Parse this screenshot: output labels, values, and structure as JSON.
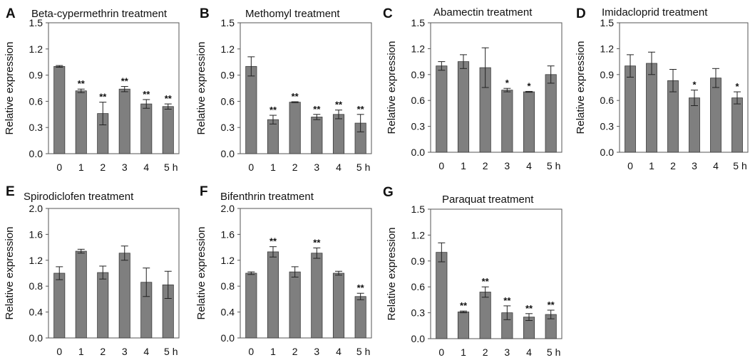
{
  "figure": {
    "x_unit_label": "h"
  },
  "chart_data": [
    {
      "panel": "A",
      "type": "bar",
      "title": "Beta-cypermethrin treatment",
      "xlabel": "",
      "ylabel": "Relative expression",
      "categories": [
        "0",
        "1",
        "2",
        "3",
        "4",
        "5"
      ],
      "values": [
        1.0,
        0.72,
        0.46,
        0.74,
        0.57,
        0.54
      ],
      "errors": [
        0.01,
        0.02,
        0.13,
        0.03,
        0.05,
        0.03
      ],
      "significance": [
        "",
        "**",
        "**",
        "**",
        "**",
        "**"
      ],
      "ylim": [
        0,
        1.5
      ],
      "yticks": [
        "0.0",
        "0.3",
        "0.6",
        "0.9",
        "1.2",
        "1.5"
      ]
    },
    {
      "panel": "B",
      "type": "bar",
      "title": "Methomyl treatment",
      "xlabel": "",
      "ylabel": "Relative expression",
      "categories": [
        "0",
        "1",
        "2",
        "3",
        "4",
        "5"
      ],
      "values": [
        1.0,
        0.39,
        0.59,
        0.42,
        0.45,
        0.35
      ],
      "errors": [
        0.11,
        0.05,
        0.005,
        0.03,
        0.05,
        0.1
      ],
      "significance": [
        "",
        "**",
        "**",
        "**",
        "**",
        "**"
      ],
      "ylim": [
        0,
        1.5
      ],
      "yticks": [
        "0.0",
        "0.3",
        "0.6",
        "0.9",
        "1.2",
        "1.5"
      ]
    },
    {
      "panel": "C",
      "type": "bar",
      "title": "Abamectin treatment",
      "xlabel": "",
      "ylabel": "Relative expression",
      "categories": [
        "0",
        "1",
        "2",
        "3",
        "4",
        "5"
      ],
      "values": [
        1.0,
        1.05,
        0.98,
        0.72,
        0.7,
        0.9
      ],
      "errors": [
        0.05,
        0.08,
        0.23,
        0.02,
        0.005,
        0.1
      ],
      "significance": [
        "",
        "",
        "",
        "*",
        "*",
        ""
      ],
      "ylim": [
        0,
        1.5
      ],
      "yticks": [
        "0.0",
        "0.3",
        "0.6",
        "0.9",
        "1.2",
        "1.5"
      ]
    },
    {
      "panel": "D",
      "type": "bar",
      "title": "Imidacloprid treatment",
      "xlabel": "",
      "ylabel": "Relative expression",
      "categories": [
        "0",
        "1",
        "2",
        "3",
        "4",
        "5"
      ],
      "values": [
        1.0,
        1.03,
        0.83,
        0.63,
        0.86,
        0.63
      ],
      "errors": [
        0.13,
        0.13,
        0.13,
        0.09,
        0.11,
        0.07
      ],
      "significance": [
        "",
        "",
        "",
        "*",
        "",
        "*"
      ],
      "ylim": [
        0,
        1.5
      ],
      "yticks": [
        "0.0",
        "0.3",
        "0.6",
        "0.9",
        "1.2",
        "1.5"
      ]
    },
    {
      "panel": "E",
      "type": "bar",
      "title": "Spirodiclofen  treatment",
      "xlabel": "",
      "ylabel": "Relative expression",
      "categories": [
        "0",
        "1",
        "2",
        "3",
        "4",
        "5"
      ],
      "values": [
        1.0,
        1.34,
        1.01,
        1.31,
        0.86,
        0.82
      ],
      "errors": [
        0.1,
        0.03,
        0.1,
        0.11,
        0.22,
        0.21
      ],
      "significance": [
        "",
        "",
        "",
        "",
        "",
        ""
      ],
      "ylim": [
        0,
        2.0
      ],
      "yticks": [
        "0.0",
        "0.4",
        "0.8",
        "1.2",
        "1.6",
        "2.0"
      ]
    },
    {
      "panel": "F",
      "type": "bar",
      "title": "Bifenthrin treatment",
      "xlabel": "",
      "ylabel": "Relative expression",
      "categories": [
        "0",
        "1",
        "2",
        "3",
        "4",
        "5"
      ],
      "values": [
        1.0,
        1.33,
        1.02,
        1.31,
        1.0,
        0.64
      ],
      "errors": [
        0.02,
        0.08,
        0.08,
        0.08,
        0.03,
        0.05
      ],
      "significance": [
        "",
        "**",
        "",
        "**",
        "",
        "**"
      ],
      "ylim": [
        0,
        2.0
      ],
      "yticks": [
        "0.0",
        "0.4",
        "0.8",
        "1.2",
        "1.6",
        "2.0"
      ]
    },
    {
      "panel": "G",
      "type": "bar",
      "title": "Paraquat treatment",
      "xlabel": "",
      "ylabel": "Relative expression",
      "categories": [
        "0",
        "1",
        "2",
        "3",
        "4",
        "5"
      ],
      "values": [
        1.0,
        0.31,
        0.54,
        0.3,
        0.25,
        0.28
      ],
      "errors": [
        0.11,
        0.01,
        0.06,
        0.08,
        0.04,
        0.05
      ],
      "significance": [
        "",
        "**",
        "**",
        "**",
        "**",
        "**"
      ],
      "ylim": [
        0,
        1.5
      ],
      "yticks": [
        "0.0",
        "0.3",
        "0.6",
        "0.9",
        "1.2",
        "1.5"
      ]
    }
  ]
}
